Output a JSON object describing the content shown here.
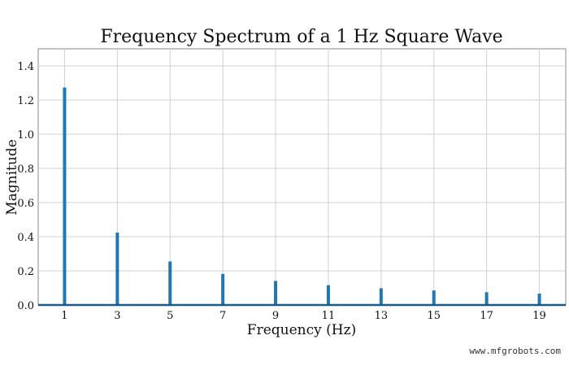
{
  "chart_data": {
    "type": "bar",
    "title": "Frequency Spectrum of a 1 Hz Square Wave",
    "xlabel": "Frequency (Hz)",
    "ylabel": "Magnitude",
    "x": [
      1,
      3,
      5,
      7,
      9,
      11,
      13,
      15,
      17,
      19
    ],
    "values": [
      1.273,
      0.424,
      0.255,
      0.182,
      0.141,
      0.116,
      0.098,
      0.085,
      0.075,
      0.067
    ],
    "xlim": [
      0,
      20
    ],
    "ylim": [
      0,
      1.5
    ],
    "xticks": [
      "1",
      "3",
      "5",
      "7",
      "9",
      "11",
      "13",
      "15",
      "17",
      "19"
    ],
    "yticks": [
      "0.0",
      "0.2",
      "0.4",
      "0.6",
      "0.8",
      "1.0",
      "1.2",
      "1.4"
    ],
    "grid": true,
    "color": "#1f77b4"
  },
  "watermark": "www.mfgrobots.com"
}
